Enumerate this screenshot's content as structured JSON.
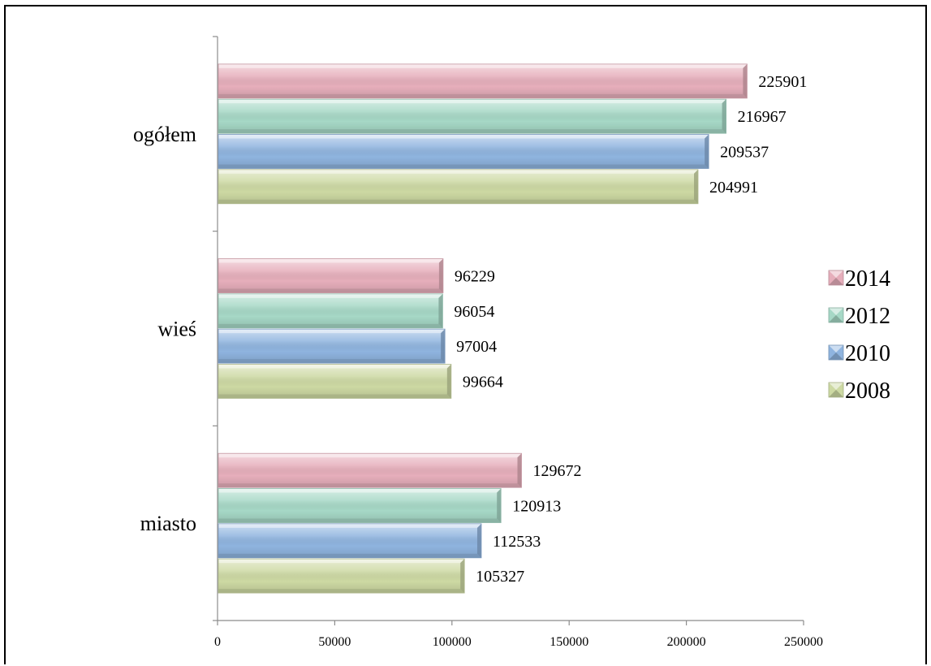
{
  "chart_data": {
    "type": "bar",
    "orientation": "horizontal",
    "categories": [
      "ogółem",
      "wieś",
      "miasto"
    ],
    "series": [
      {
        "name": "2014",
        "values": [
          225901,
          96229,
          129672
        ],
        "color": "#e6aebb"
      },
      {
        "name": "2012",
        "values": [
          216967,
          96054,
          120913
        ],
        "color": "#a6d8c6"
      },
      {
        "name": "2010",
        "values": [
          209537,
          97004,
          112533
        ],
        "color": "#8fb4df"
      },
      {
        "name": "2008",
        "values": [
          204991,
          99664,
          105327
        ],
        "color": "#cdd9a3"
      }
    ],
    "xticks": [
      "0",
      "50000",
      "100000",
      "150000",
      "200000",
      "250000"
    ],
    "xlim": [
      0,
      250000
    ],
    "legend_position": "right",
    "title": "",
    "xlabel": "",
    "ylabel": "",
    "grid": false
  }
}
